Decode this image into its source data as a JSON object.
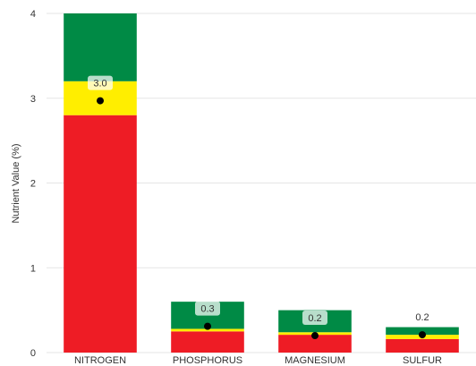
{
  "chart_data": {
    "type": "bar",
    "ylabel": "Nutrient Value (%)",
    "xlabel": "",
    "ylim": [
      0,
      4
    ],
    "yticks": [
      0,
      1,
      2,
      3,
      4
    ],
    "grid": true,
    "categories": [
      "NITROGEN",
      "PHOSPHORUS",
      "MAGNESIUM",
      "SULFUR"
    ],
    "bands": [
      {
        "name": "low",
        "color": "#ee1c25",
        "values": [
          2.8,
          0.25,
          0.21,
          0.16
        ]
      },
      {
        "name": "medium",
        "color": "#ffee00",
        "values": [
          0.4,
          0.03,
          0.03,
          0.05
        ]
      },
      {
        "name": "high",
        "color": "#008a45",
        "values": [
          0.8,
          0.32,
          0.26,
          0.09
        ]
      }
    ],
    "measured": [
      2.97,
      0.31,
      0.2,
      0.21
    ],
    "point_labels": [
      "3.0",
      "0.3",
      "0.2",
      "0.2"
    ],
    "point_label_badge": [
      true,
      true,
      true,
      false
    ],
    "axis_color": "#333333",
    "grid_color": "#e6e6e6"
  }
}
